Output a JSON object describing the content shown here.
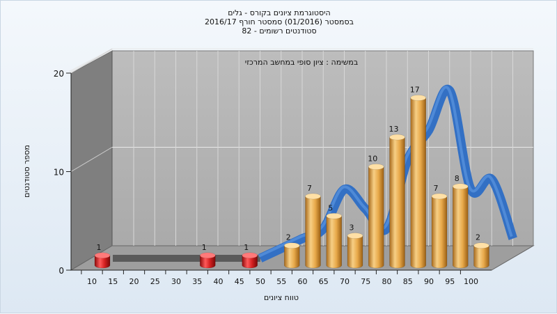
{
  "chart_data": {
    "type": "bar",
    "title": [
      "היסטוגרמת ציונים בקורס - גלים",
      "בסמסטר  (01/2016)  סמסטר חורף 2016/17",
      "82 - סטודנטים רשומים"
    ],
    "annotation": "במשימה : ציון סופי במחשב המרכזי",
    "xlabel": "טווח ציונים",
    "ylabel": "מספר סטודנטים",
    "ylim": [
      0,
      20
    ],
    "y_ticks": [
      0,
      10,
      20
    ],
    "x_ticks": [
      10,
      15,
      20,
      25,
      30,
      35,
      40,
      45,
      50,
      55,
      60,
      65,
      70,
      75,
      80,
      85,
      90,
      95,
      100
    ],
    "bars": [
      {
        "x": 10,
        "value": 1,
        "status": "fail"
      },
      {
        "x": 35,
        "value": 1,
        "status": "fail"
      },
      {
        "x": 45,
        "value": 1,
        "status": "fail"
      },
      {
        "x": 55,
        "value": 2,
        "status": "pass"
      },
      {
        "x": 60,
        "value": 7,
        "status": "pass"
      },
      {
        "x": 65,
        "value": 5,
        "status": "pass"
      },
      {
        "x": 70,
        "value": 3,
        "status": "pass"
      },
      {
        "x": 75,
        "value": 10,
        "status": "pass"
      },
      {
        "x": 80,
        "value": 13,
        "status": "pass"
      },
      {
        "x": 85,
        "value": 17,
        "status": "pass"
      },
      {
        "x": 90,
        "value": 7,
        "status": "pass"
      },
      {
        "x": 95,
        "value": 8,
        "status": "pass"
      },
      {
        "x": 100,
        "value": 2,
        "status": "pass"
      }
    ],
    "trend_line": [
      0,
      0,
      0,
      0,
      0,
      0,
      0,
      0,
      1,
      2,
      3,
      7,
      5,
      3,
      10,
      13,
      17,
      7,
      8,
      2
    ],
    "grid": true,
    "colors": {
      "pass_bar": "#e8a94a",
      "fail_bar": "#d42020",
      "trend": "#3370c4",
      "trend_floor": "#5a5a5a",
      "back_wall": "#b4b4b4",
      "side_wall": "#7f7f7f",
      "floor": "#9e9e9e"
    }
  }
}
